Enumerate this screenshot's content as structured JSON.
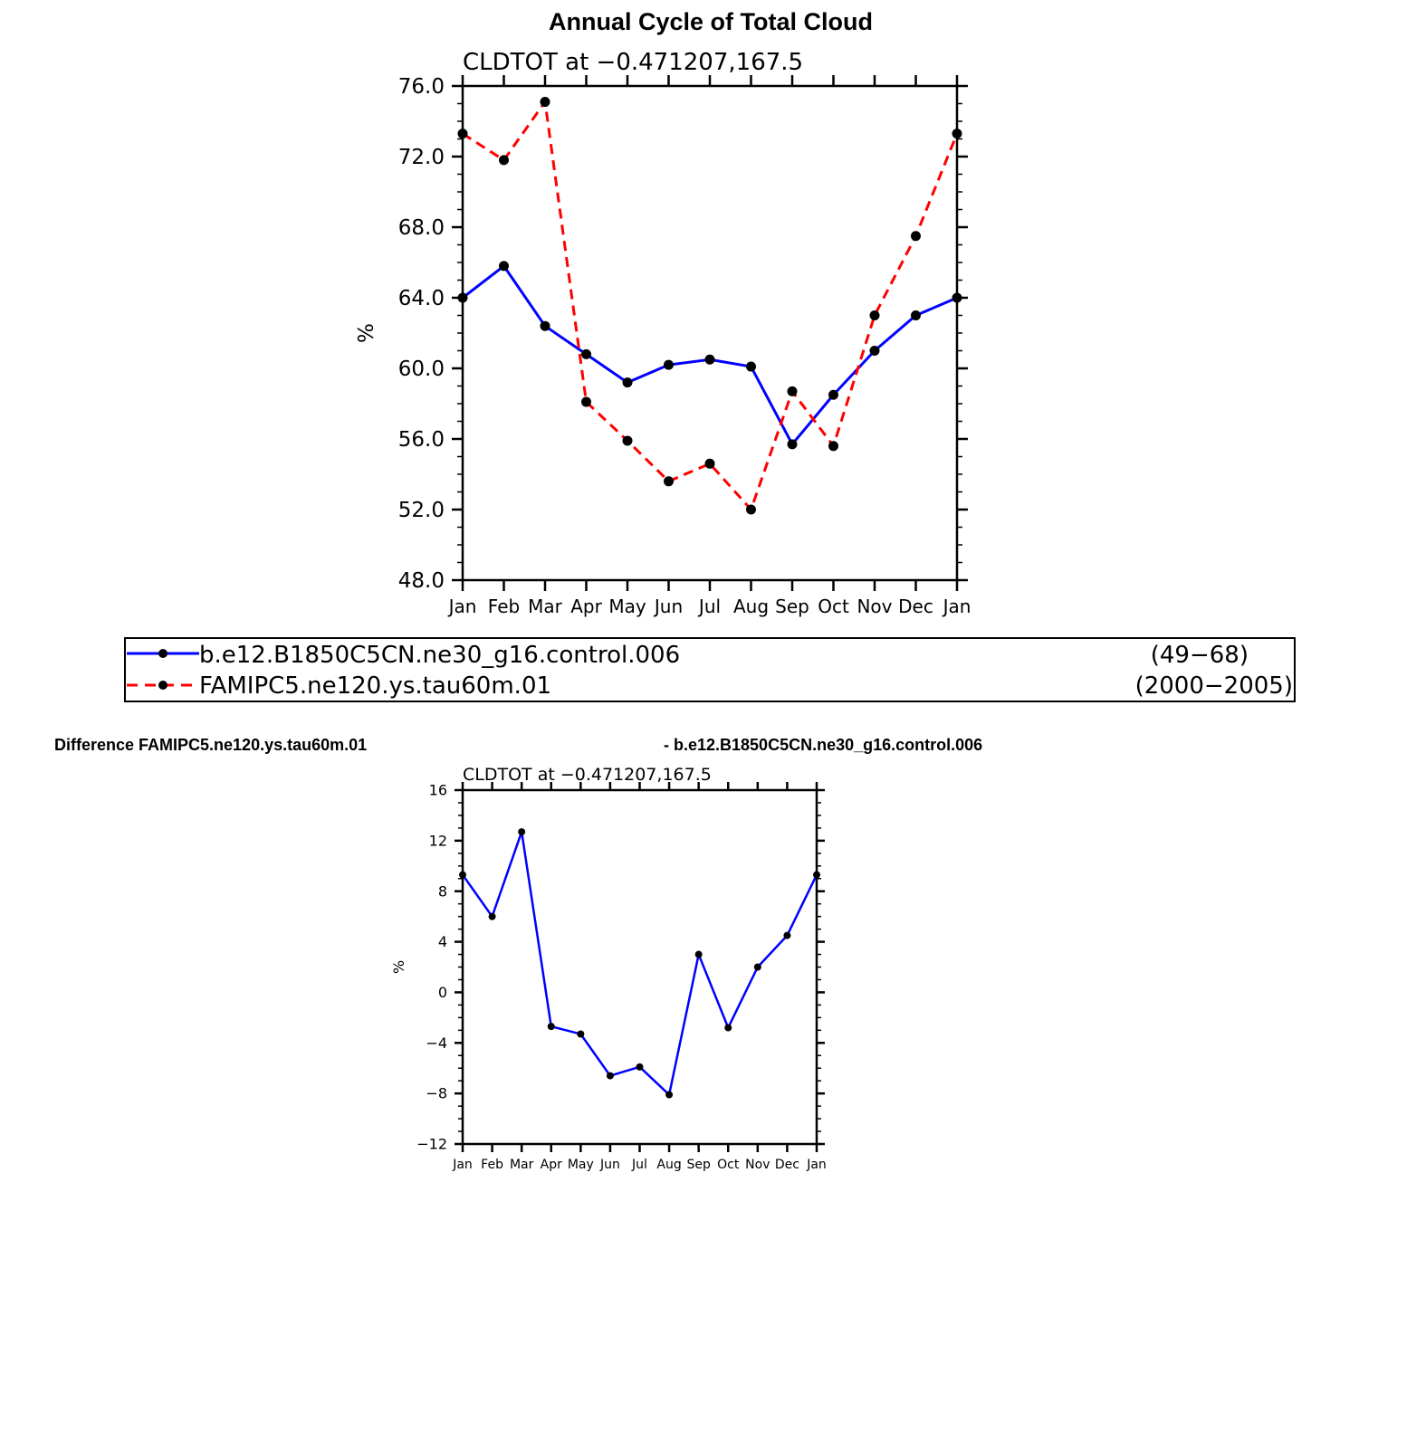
{
  "figure_title": "Annual Cycle of Total Cloud",
  "difference_title_left": "Difference FAMIPC5.ne120.ys.tau60m.01",
  "difference_title_right": "- b.e12.B1850C5CN.ne30_g16.control.006",
  "legend": {
    "entries": [
      {
        "label": "b.e12.B1850C5CN.ne30_g16.control.006",
        "years": "(49−68)",
        "color": "#0000ff",
        "dash": "solid"
      },
      {
        "label": "FAMIPC5.ne120.ys.tau60m.01",
        "years": "(2000−2005)",
        "color": "#ff0000",
        "dash": "dashed"
      }
    ]
  },
  "chart_data": [
    {
      "type": "line",
      "title": "CLDTOT  at  −0.471207,167.5",
      "xlabel": "",
      "ylabel": "%",
      "categories": [
        "Jan",
        "Feb",
        "Mar",
        "Apr",
        "May",
        "Jun",
        "Jul",
        "Aug",
        "Sep",
        "Oct",
        "Nov",
        "Dec",
        "Jan"
      ],
      "ylim": [
        48,
        76
      ],
      "yticks": [
        48,
        52,
        56,
        60,
        64,
        68,
        72,
        76
      ],
      "ytick_labels": [
        "48.0",
        "52.0",
        "56.0",
        "60.0",
        "64.0",
        "68.0",
        "72.0",
        "76.0"
      ],
      "series": [
        {
          "name": "b.e12.B1850C5CN.ne30_g16.control.006",
          "color": "#0000ff",
          "dash": "solid",
          "values": [
            64.0,
            65.8,
            62.4,
            60.8,
            59.2,
            60.2,
            60.5,
            60.1,
            55.7,
            58.5,
            61.0,
            63.0,
            64.0
          ]
        },
        {
          "name": "FAMIPC5.ne120.ys.tau60m.01",
          "color": "#ff0000",
          "dash": "dashed",
          "values": [
            73.3,
            71.8,
            75.1,
            58.1,
            55.9,
            53.6,
            54.6,
            52.0,
            58.7,
            55.6,
            63.0,
            67.5,
            73.3
          ]
        }
      ]
    },
    {
      "type": "line",
      "title": "CLDTOT  at  −0.471207,167.5",
      "xlabel": "",
      "ylabel": "%",
      "categories": [
        "Jan",
        "Feb",
        "Mar",
        "Apr",
        "May",
        "Jun",
        "Jul",
        "Aug",
        "Sep",
        "Oct",
        "Nov",
        "Dec",
        "Jan"
      ],
      "ylim": [
        -12,
        16
      ],
      "yticks": [
        -12,
        -8,
        -4,
        0,
        4,
        8,
        12,
        16
      ],
      "ytick_labels": [
        "−12",
        "−8",
        "−4",
        "0",
        "4",
        "8",
        "12",
        "16"
      ],
      "series": [
        {
          "name": "Difference",
          "color": "#0000ff",
          "dash": "solid",
          "values": [
            9.3,
            6.0,
            12.7,
            -2.7,
            -3.3,
            -6.6,
            -5.9,
            -8.1,
            3.0,
            -2.8,
            2.0,
            4.5,
            9.3
          ]
        }
      ]
    }
  ]
}
